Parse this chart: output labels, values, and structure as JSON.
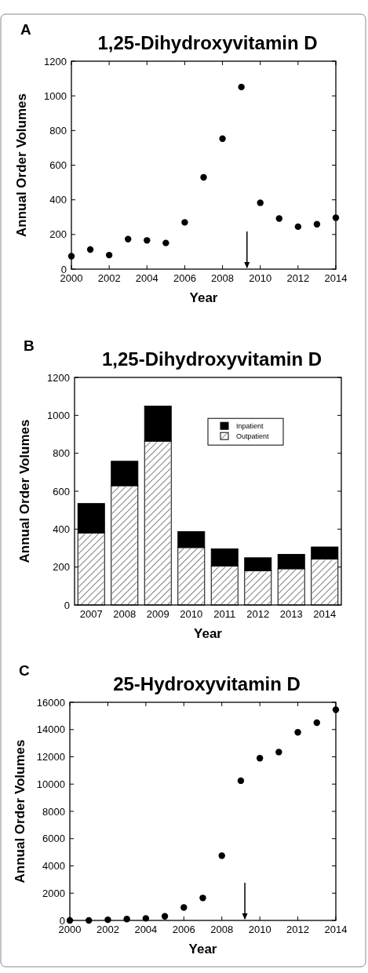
{
  "chart_data": [
    {
      "type": "scatter",
      "title": "1,25-Dihydroxyvitamin D",
      "xlabel": "Year",
      "ylabel": "Annual Order Volumes",
      "annotations": [
        "A"
      ],
      "marker": "circle",
      "grid": false,
      "legend": false,
      "x": [
        2000,
        2001,
        2002,
        2003,
        2004,
        2005,
        2006,
        2007,
        2008,
        2009,
        2010,
        2011,
        2012,
        2013,
        2014
      ],
      "series": [
        {
          "color": "#000000",
          "values": [
            75,
            113,
            81,
            173,
            166,
            151,
            270,
            530,
            753,
            1051,
            383,
            292,
            245,
            259,
            297
          ]
        }
      ],
      "xlim": [
        2000,
        2014
      ],
      "xticks": [
        2000,
        2002,
        2004,
        2006,
        2008,
        2010,
        2012,
        2014
      ],
      "ylim": [
        0,
        1200
      ],
      "yticks": [
        0,
        200,
        400,
        600,
        800,
        1000,
        1200
      ]
    },
    {
      "type": "bar",
      "stacked": true,
      "title": "1,25-Dihydroxyvitamin D",
      "xlabel": "Year",
      "ylabel": "Annual Order Volumes",
      "annotations": [
        "B"
      ],
      "grid": false,
      "legend": "top right",
      "categories": [
        "2007",
        "2008",
        "2009",
        "2010",
        "2011",
        "2012",
        "2013",
        "2014"
      ],
      "series": [
        {
          "name": "Outpatient",
          "color": "#ffffff",
          "values": [
            380,
            629,
            864,
            303,
            206,
            181,
            191,
            242
          ]
        },
        {
          "name": "Inpatient",
          "color": "#000000",
          "values": [
            155,
            129,
            185,
            84,
            90,
            68,
            76,
            64
          ]
        }
      ],
      "ylim": [
        0,
        1200
      ],
      "yticks": [
        0,
        200,
        400,
        600,
        800,
        1000,
        1200
      ]
    },
    {
      "type": "scatter",
      "title": "25-Hydroxyvitamin D",
      "xlabel": "Year",
      "ylabel": "Annual Order Volumes",
      "annotations": [
        "C"
      ],
      "marker": "circle",
      "grid": false,
      "legend": false,
      "x": [
        2000,
        2001,
        2002,
        2003,
        2004,
        2005,
        2006,
        2007,
        2008,
        2009,
        2010,
        2011,
        2012,
        2013,
        2014
      ],
      "series": [
        {
          "color": "#000000",
          "values": [
            0,
            0,
            50,
            100,
            150,
            300,
            950,
            1650,
            4750,
            10250,
            11900,
            12350,
            13800,
            14500,
            15450
          ]
        }
      ],
      "xlim": [
        2000,
        2014
      ],
      "xticks": [
        2000,
        2002,
        2004,
        2006,
        2008,
        2010,
        2012,
        2014
      ],
      "ylim": [
        0,
        16000
      ],
      "yticks": [
        0,
        2000,
        4000,
        6000,
        8000,
        10000,
        12000,
        14000,
        16000
      ]
    }
  ]
}
